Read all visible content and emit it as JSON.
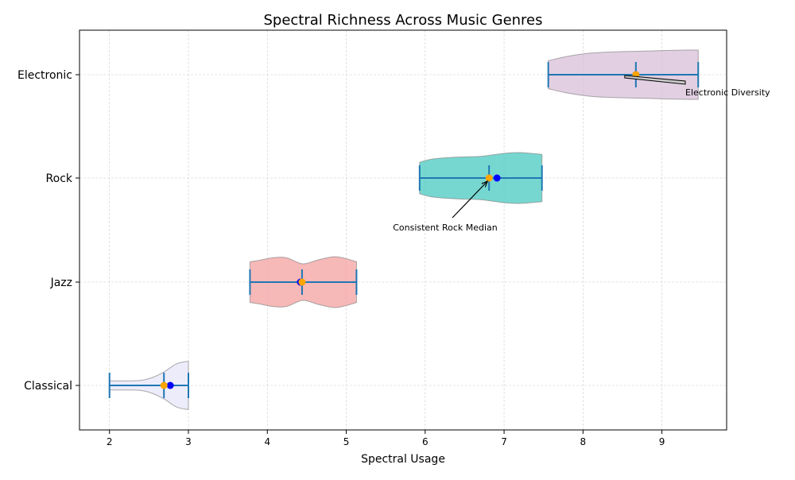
{
  "chart_data": {
    "type": "violin",
    "orientation": "horizontal",
    "title": "Spectral Richness Across Music Genres",
    "xlabel": "Spectral Usage",
    "ylabel": "",
    "xlim": [
      1.62,
      9.82
    ],
    "xticks": [
      "2",
      "3",
      "4",
      "5",
      "6",
      "7",
      "8",
      "9"
    ],
    "grid": true,
    "categories": [
      "Classical",
      "Jazz",
      "Rock",
      "Electronic"
    ],
    "series": [
      {
        "category": "Classical",
        "color": "#e6e6fa",
        "min": 2.0,
        "max": 3.0,
        "median": 2.69,
        "mean": 2.77,
        "density": [
          [
            2.0,
            0.18
          ],
          [
            2.2,
            0.18
          ],
          [
            2.4,
            0.2
          ],
          [
            2.55,
            0.32
          ],
          [
            2.7,
            0.55
          ],
          [
            2.85,
            0.85
          ],
          [
            3.0,
            0.95
          ]
        ]
      },
      {
        "category": "Jazz",
        "color": "#f4a0a0",
        "min": 3.78,
        "max": 5.13,
        "median": 4.44,
        "mean": 4.42,
        "density": [
          [
            3.78,
            0.8
          ],
          [
            3.9,
            0.86
          ],
          [
            4.1,
            0.97
          ],
          [
            4.25,
            0.95
          ],
          [
            4.45,
            0.72
          ],
          [
            4.65,
            0.88
          ],
          [
            4.85,
            1.0
          ],
          [
            5.0,
            0.92
          ],
          [
            5.13,
            0.8
          ]
        ]
      },
      {
        "category": "Rock",
        "color": "#48c9c0",
        "min": 5.93,
        "max": 7.48,
        "median": 6.81,
        "mean": 6.91,
        "density": [
          [
            5.93,
            0.62
          ],
          [
            6.1,
            0.75
          ],
          [
            6.4,
            0.82
          ],
          [
            6.7,
            0.85
          ],
          [
            7.0,
            0.97
          ],
          [
            7.2,
            1.0
          ],
          [
            7.48,
            0.93
          ]
        ]
      },
      {
        "category": "Electronic",
        "color": "#d8bfd8",
        "min": 7.56,
        "max": 9.46,
        "median": 8.67,
        "mean": 8.67,
        "density": [
          [
            7.56,
            0.55
          ],
          [
            7.8,
            0.72
          ],
          [
            8.1,
            0.85
          ],
          [
            8.4,
            0.9
          ],
          [
            8.7,
            0.92
          ],
          [
            9.0,
            0.95
          ],
          [
            9.3,
            0.97
          ],
          [
            9.46,
            0.97
          ]
        ]
      }
    ],
    "annotations": [
      {
        "text": "Electronic Diversity",
        "x": 8.67,
        "y": "Electronic"
      },
      {
        "text": "Consistent Rock Median",
        "x": 6.81,
        "y": "Rock"
      }
    ],
    "colors": {
      "whisker": "#1f77b4",
      "mean_marker": "#0000ff",
      "median_marker": "#ffa500",
      "grid": "#cccccc"
    }
  }
}
